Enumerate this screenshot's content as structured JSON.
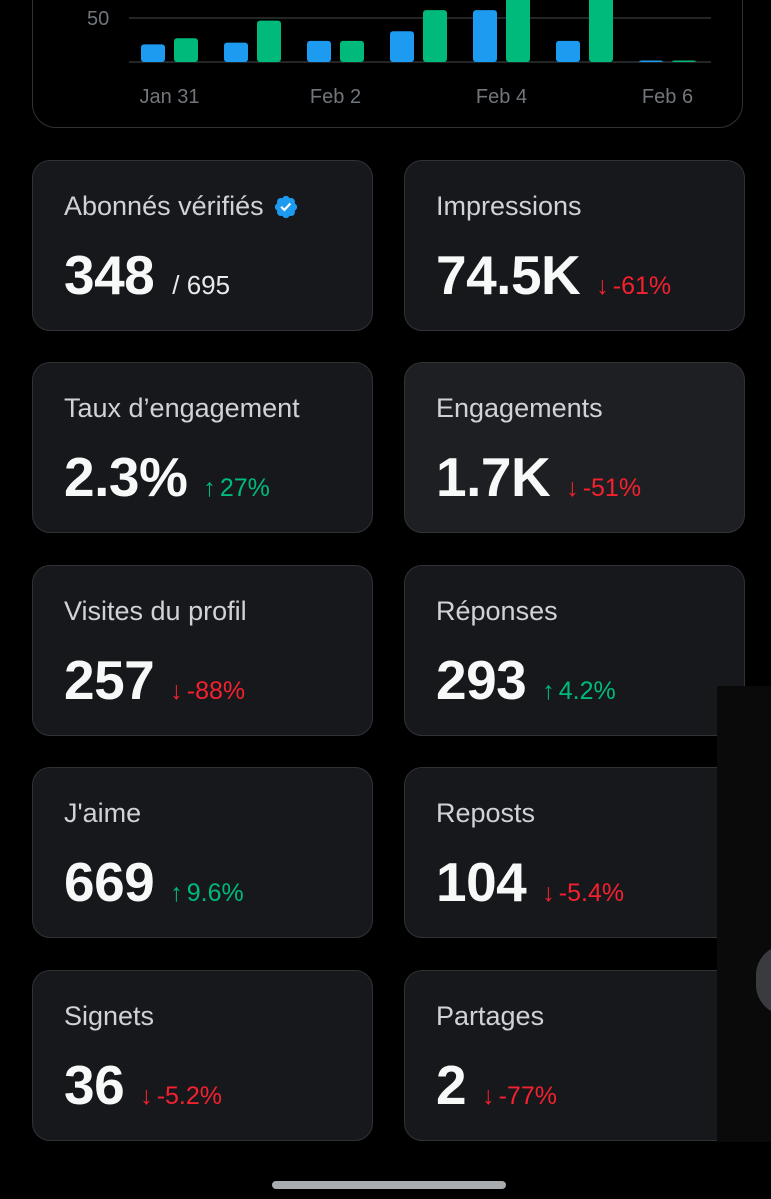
{
  "chart_data": {
    "type": "bar",
    "categories": [
      "Jan 31",
      "Feb 1",
      "Feb 2",
      "Feb 3",
      "Feb 4",
      "Feb 5",
      "Feb 6"
    ],
    "x_tick_labels": [
      "Jan 31",
      "Feb 2",
      "Feb 4",
      "Feb 6"
    ],
    "y_tick_labels": [
      "50"
    ],
    "series": [
      {
        "color": "#1d9bf0",
        "values": [
          20,
          22,
          24,
          35,
          59,
          24,
          1
        ]
      },
      {
        "color": "#00ba7c",
        "values": [
          27,
          47,
          24,
          59,
          100,
          100,
          1
        ]
      }
    ],
    "grid": true
  },
  "metrics": [
    {
      "label": "Abonnés vérifiés",
      "value": "348",
      "total": "/ 695",
      "verified_icon": "verified-badge-icon"
    },
    {
      "label": "Impressions",
      "value": "74.5K",
      "delta": "-61%",
      "direction": "down"
    },
    {
      "label": "Taux d’engagement",
      "value": "2.3%",
      "delta": "27%",
      "direction": "up"
    },
    {
      "label": "Engagements",
      "value": "1.7K",
      "delta": "-51%",
      "direction": "down"
    },
    {
      "label": "Visites du profil",
      "value": "257",
      "delta": "-88%",
      "direction": "down"
    },
    {
      "label": "Réponses",
      "value": "293",
      "delta": "4.2%",
      "direction": "up"
    },
    {
      "label": "J'aime",
      "value": "669",
      "delta": "9.6%",
      "direction": "up"
    },
    {
      "label": "Reposts",
      "value": "104",
      "delta": "-5.4%",
      "direction": "down"
    },
    {
      "label": "Signets",
      "value": "36",
      "delta": "-5.2%",
      "direction": "down"
    },
    {
      "label": "Partages",
      "value": "2",
      "delta": "-77%",
      "direction": "down"
    }
  ],
  "colors": {
    "up": "#00ba7c",
    "down": "#f4212e",
    "verified": "#1d9bf0"
  },
  "arrows": {
    "up": "↑",
    "down": "↓"
  }
}
